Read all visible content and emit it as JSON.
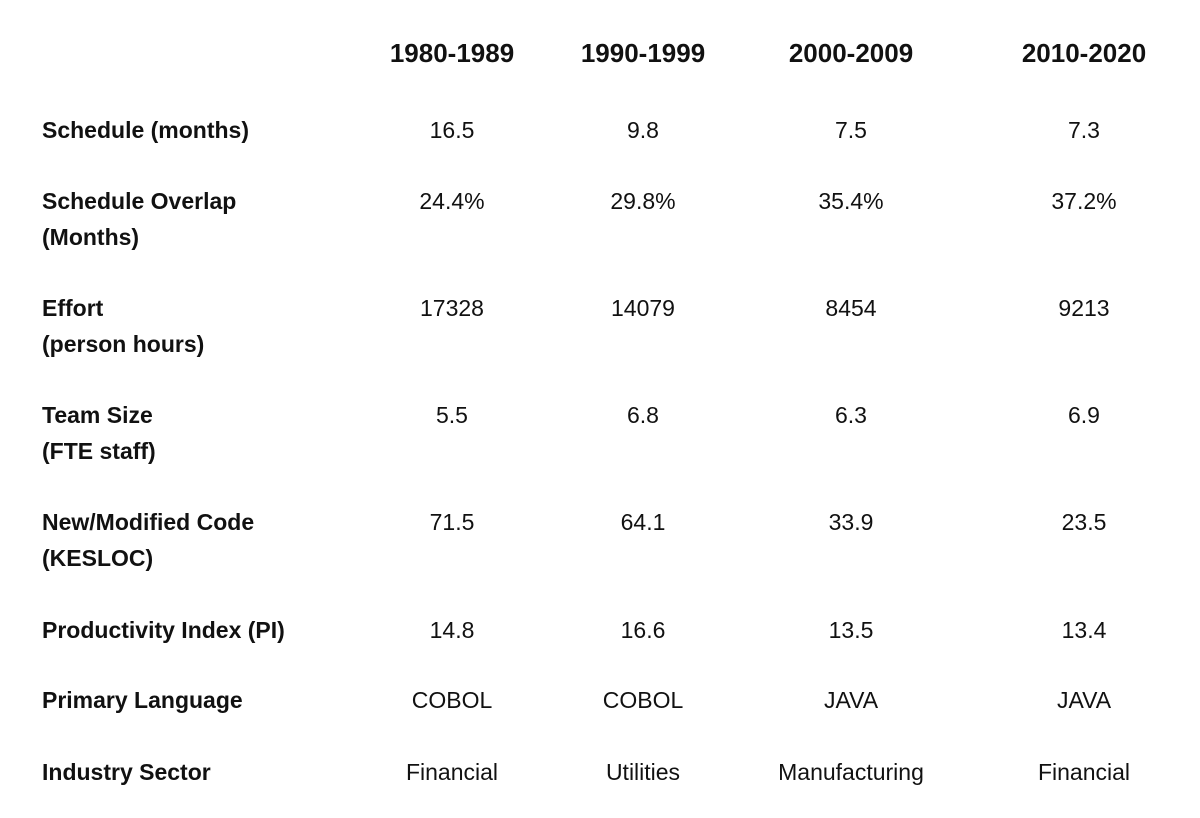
{
  "chart_data": {
    "type": "table",
    "columns": [
      "1980-1989",
      "1990-1999",
      "2000-2009",
      "2010-2020"
    ],
    "rows": [
      {
        "label": "Schedule (months)",
        "values": [
          "16.5",
          "9.8",
          "7.5",
          "7.3"
        ]
      },
      {
        "label": "Schedule Overlap\n(Months)",
        "values": [
          "24.4%",
          "29.8%",
          "35.4%",
          "37.2%"
        ]
      },
      {
        "label": "Effort\n(person hours)",
        "values": [
          "17328",
          "14079",
          "8454",
          "9213"
        ]
      },
      {
        "label": "Team Size\n(FTE staff)",
        "values": [
          "5.5",
          "6.8",
          "6.3",
          "6.9"
        ]
      },
      {
        "label": "New/Modified Code\n(KESLOC)",
        "values": [
          "71.5",
          "64.1",
          "33.9",
          "23.5"
        ]
      },
      {
        "label": "Productivity Index (PI)",
        "values": [
          "14.8",
          "16.6",
          "13.5",
          "13.4"
        ]
      },
      {
        "label": "Primary Language",
        "values": [
          "COBOL",
          "COBOL",
          "JAVA",
          "JAVA"
        ]
      },
      {
        "label": "Industry Sector",
        "values": [
          "Financial",
          "Utilities",
          "Manufacturing",
          "Financial"
        ]
      }
    ]
  }
}
